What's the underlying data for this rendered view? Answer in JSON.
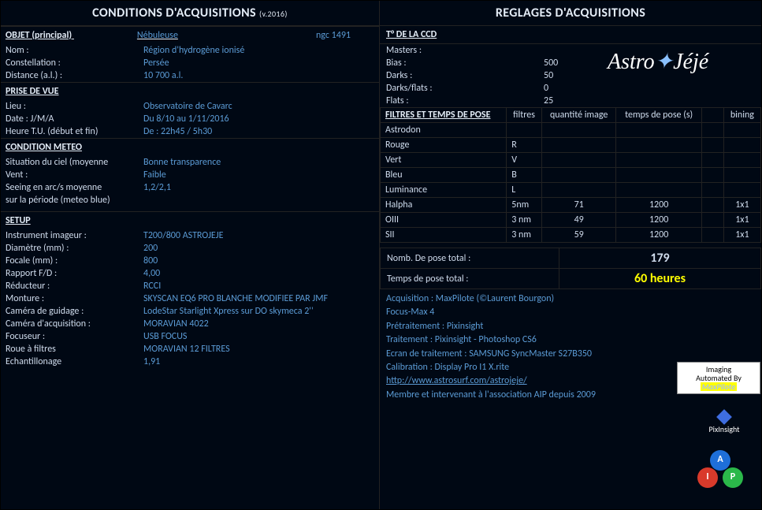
{
  "titles": {
    "left": "CONDITIONS D'ACQUISITIONS",
    "version": "(v.2016)",
    "right": "REGLAGES D'ACQUISITIONS"
  },
  "objet": {
    "header": "OBJET (principal)",
    "type": "Nébuleuse",
    "ngc": "ngc 1491",
    "nom_lbl": "Nom :",
    "nom": "Région d'hydrogène ionisé",
    "const_lbl": "Constellation :",
    "const": "Persée",
    "dist_lbl": "Distance (a.l.) :",
    "dist": "10 700 a.l."
  },
  "prise": {
    "header": "PRISE DE VUE",
    "lieu_lbl": "Lieu :",
    "lieu": "Observatoire de Cavarc",
    "date_lbl": "Date : J/M/A",
    "date": "Du 8/10 au 1/11/2016",
    "heure_lbl": "Heure T.U. (début et fin)",
    "heure": "De : 22h45 / 5h30"
  },
  "meteo": {
    "header": "CONDITION METEO",
    "ciel_lbl": "Situation du ciel (moyenne",
    "ciel": "Bonne transparence",
    "vent_lbl": "Vent :",
    "vent": "Faible",
    "seeing_lbl": "Seeing en arc/s moyenne",
    "seeing": "1,2/2,1",
    "periode_lbl": "sur la période (meteo blue)",
    "periode": ""
  },
  "setup": {
    "header": "SETUP",
    "instr_lbl": "Instrument imageur :",
    "instr": "T200/800 ASTROJEJE",
    "diam_lbl": "Diamètre (mm) :",
    "diam": "200",
    "foc_lbl": "Focale (mm) :",
    "foc": "800",
    "fd_lbl": "Rapport F/D :",
    "fd": "4,00",
    "red_lbl": "Réducteur :",
    "red": "RCCI",
    "mont_lbl": "Monture :",
    "mont": "SKYSCAN EQ6 PRO BLANCHE MODIFIEE PAR JMF",
    "guide_lbl": "Caméra de guidage :",
    "guide": "LodeStar Starlight Xpress sur DO skymeca 2''",
    "cam_lbl": "Caméra d'acquisition :",
    "cam": "MORAVIAN 4022",
    "focuser_lbl": "Focuseur :",
    "focuser": "USB FOCUS",
    "roue_lbl": "Roue à filtres",
    "roue": "MORAVIAN 12 FILTRES",
    "ech_lbl": "Echantillonage",
    "ech": "1,91"
  },
  "ccd": {
    "header": "T° DE LA CCD",
    "masters_lbl": "Masters :",
    "bias_lbl": "Bias :",
    "bias": "500",
    "darks_lbl": "Darks :",
    "darks": "50",
    "df_lbl": "Darks/flats :",
    "df": "0",
    "flats_lbl": "Flats :",
    "flats": "25"
  },
  "filters": {
    "header": "FILTRES ET TEMPS DE POSE",
    "col_filtres": "filtres",
    "col_qty": "quantité image",
    "col_time": "temps de pose (s)",
    "col_bin": "bining",
    "rows": [
      {
        "name": "Astrodon",
        "f": "",
        "q": "",
        "t": "",
        "b": ""
      },
      {
        "name": "Rouge",
        "f": "R",
        "q": "",
        "t": "",
        "b": ""
      },
      {
        "name": "Vert",
        "f": "V",
        "q": "",
        "t": "",
        "b": ""
      },
      {
        "name": "Bleu",
        "f": "B",
        "q": "",
        "t": "",
        "b": ""
      },
      {
        "name": "Luminance",
        "f": "L",
        "q": "",
        "t": "",
        "b": ""
      },
      {
        "name": "Halpha",
        "f": "5nm",
        "q": "71",
        "t": "1200",
        "b": "1x1"
      },
      {
        "name": "OIII",
        "f": "3 nm",
        "q": "49",
        "t": "1200",
        "b": "1x1"
      },
      {
        "name": "SII",
        "f": "3 nm",
        "q": "59",
        "t": "1200",
        "b": "1x1"
      }
    ]
  },
  "summary": {
    "count_lbl": "Nomb. De pose total :",
    "count": "179",
    "time_lbl": "Temps de pose total :",
    "time": "60 heures"
  },
  "software": {
    "l1": "Acquisition : MaxPilote (©Laurent Bourgon)",
    "l2": "Focus-Max 4",
    "l3": "Prétraitement : Pixinsight",
    "l4": "Traitement : Pixinsight - Photoshop CS6",
    "l5": "Ecran de traitement : SAMSUNG SyncMaster S27B350",
    "l6": "Calibration : Display Pro I1 X.rite",
    "url": "http://www.astrosurf.com/astrojeje/",
    "l8": "Membre et intervenant à l'association AIP depuis 2009"
  },
  "badges": {
    "astro": "Astro",
    "jeje": "Jéjé",
    "mp1": "Imaging",
    "mp2": "Automated By",
    "mp3": "MaxPilote",
    "pix": "PixInsight"
  },
  "colors": {
    "bg": "#000814",
    "text": "#d0dced",
    "value": "#5b9bd5",
    "highlight": "#ffff00",
    "border": "#222"
  }
}
